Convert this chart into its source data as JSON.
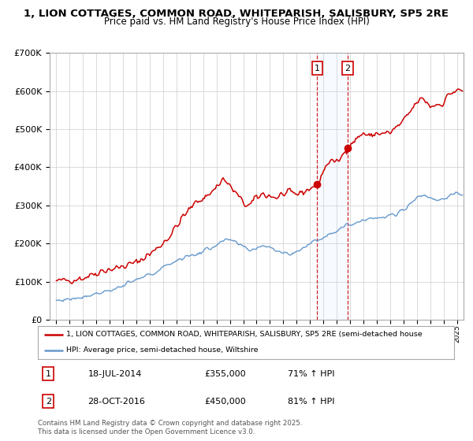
{
  "title_line1": "1, LION COTTAGES, COMMON ROAD, WHITEPARISH, SALISBURY, SP5 2RE",
  "title_line2": "Price paid vs. HM Land Registry's House Price Index (HPI)",
  "sale1_date": "18-JUL-2014",
  "sale1_price": 355000,
  "sale1_hpi": "71% ↑ HPI",
  "sale2_date": "28-OCT-2016",
  "sale2_price": 450000,
  "sale2_hpi": "81% ↑ HPI",
  "legend_line1": "1, LION COTTAGES, COMMON ROAD, WHITEPARISH, SALISBURY, SP5 2RE (semi-detached house",
  "legend_line2": "HPI: Average price, semi-detached house, Wiltshire",
  "footer": "Contains HM Land Registry data © Crown copyright and database right 2025.\nThis data is licensed under the Open Government Licence v3.0.",
  "property_color": "#cc0000",
  "hpi_color": "#6699cc",
  "vline1_x": 2014.54,
  "vline2_x": 2016.83,
  "ylim": [
    0,
    700000
  ],
  "xlim": [
    1994.5,
    2025.5
  ],
  "background_color": "#ffffff",
  "grid_color": "#cccccc",
  "shade_color": "#ddeeff"
}
